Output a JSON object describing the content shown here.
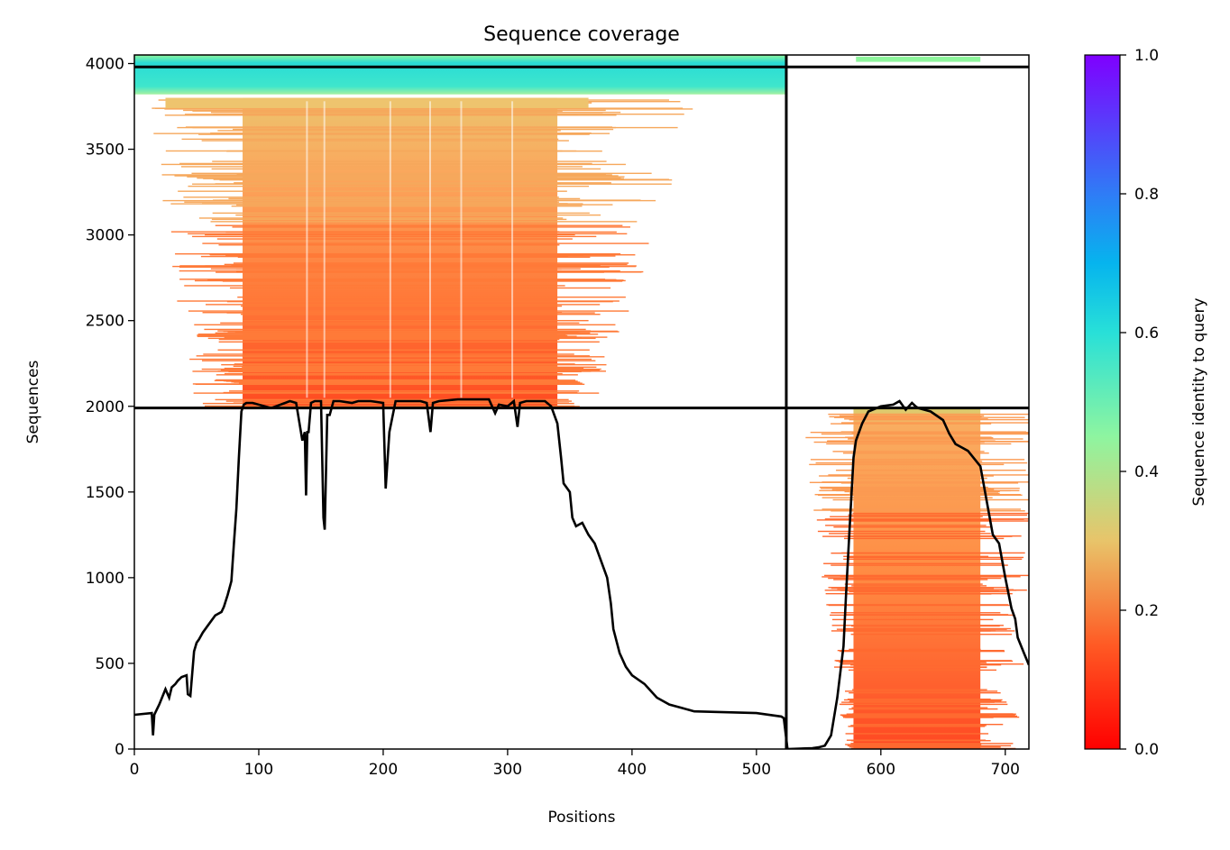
{
  "chart_data": {
    "type": "heatmap",
    "title": "Sequence coverage",
    "xlabel": "Positions",
    "ylabel": "Sequences",
    "xlim": [
      0,
      719
    ],
    "ylim": [
      0,
      4050
    ],
    "xticks": [
      0,
      100,
      200,
      300,
      400,
      500,
      600,
      700
    ],
    "yticks": [
      0,
      500,
      1000,
      1500,
      2000,
      2500,
      3000,
      3500,
      4000
    ],
    "colorbar": {
      "label": "Sequence identity to query",
      "min": 0.0,
      "max": 1.0,
      "ticks": [
        "0.0",
        "0.2",
        "0.4",
        "0.6",
        "0.8",
        "1.0"
      ],
      "colormap": "rainbow_r"
    },
    "chain_boundaries": {
      "vertical_x": 524,
      "horizontal_y": [
        1990,
        3980
      ]
    },
    "coverage_line": {
      "name": "coverage",
      "color": "#000000",
      "x": [
        0,
        14,
        15,
        16,
        18,
        20,
        25,
        28,
        30,
        33,
        35,
        38,
        42,
        43,
        45,
        48,
        50,
        52,
        55,
        60,
        65,
        70,
        72,
        75,
        78,
        80,
        82,
        84,
        86,
        87,
        88,
        90,
        95,
        110,
        125,
        130,
        135,
        137,
        138,
        139,
        140,
        142,
        145,
        150,
        152,
        153,
        155,
        157,
        160,
        165,
        175,
        180,
        190,
        200,
        202,
        205,
        210,
        230,
        235,
        238,
        240,
        245,
        260,
        285,
        290,
        293,
        300,
        305,
        308,
        310,
        315,
        330,
        335,
        340,
        343,
        345,
        350,
        352,
        355,
        360,
        365,
        370,
        380,
        383,
        385,
        390,
        395,
        400,
        410,
        420,
        430,
        440,
        450,
        500,
        520,
        522,
        525,
        545,
        550,
        555,
        560,
        565,
        570,
        572,
        575,
        578,
        580,
        585,
        590,
        600,
        610,
        615,
        620,
        625,
        628,
        630,
        640,
        650,
        655,
        660,
        665,
        670,
        680,
        690,
        695,
        700,
        705,
        708,
        710,
        715,
        719
      ],
      "y": [
        200,
        210,
        80,
        200,
        230,
        260,
        350,
        300,
        360,
        380,
        400,
        420,
        430,
        320,
        310,
        570,
        620,
        640,
        680,
        730,
        780,
        800,
        830,
        900,
        980,
        1200,
        1400,
        1700,
        1970,
        1990,
        2010,
        2020,
        2020,
        1990,
        2030,
        2020,
        1800,
        1850,
        1480,
        1850,
        1850,
        2020,
        2030,
        2030,
        1350,
        1280,
        1950,
        1950,
        2030,
        2030,
        2020,
        2030,
        2030,
        2020,
        1520,
        1850,
        2030,
        2030,
        2020,
        1850,
        2020,
        2030,
        2040,
        2040,
        1960,
        2010,
        2000,
        2030,
        1880,
        2020,
        2030,
        2030,
        2000,
        1900,
        1700,
        1550,
        1500,
        1350,
        1300,
        1320,
        1250,
        1200,
        1000,
        850,
        700,
        560,
        480,
        430,
        380,
        300,
        260,
        240,
        220,
        210,
        190,
        180,
        0,
        5,
        10,
        20,
        80,
        300,
        600,
        900,
        1300,
        1700,
        1800,
        1900,
        1970,
        2000,
        2010,
        2030,
        1980,
        2020,
        2000,
        1990,
        1970,
        1920,
        1840,
        1780,
        1760,
        1740,
        1650,
        1250,
        1200,
        1000,
        820,
        760,
        650,
        560,
        490
      ]
    }
  }
}
